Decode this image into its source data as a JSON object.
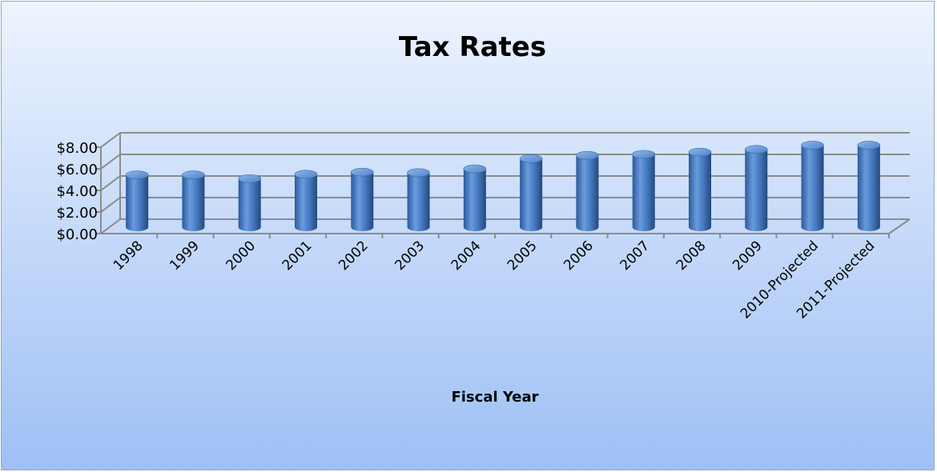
{
  "chart_data": {
    "type": "bar",
    "title": "Tax Rates",
    "xlabel": "Fiscal Year",
    "ylabel": "",
    "categories": [
      "1998",
      "1999",
      "2000",
      "2001",
      "2002",
      "2003",
      "2004",
      "2005",
      "2006",
      "2007",
      "2008",
      "2009",
      "2010-Projected",
      "2011-Projected"
    ],
    "values": [
      4.85,
      4.85,
      4.5,
      4.9,
      5.1,
      5.05,
      5.4,
      6.35,
      6.65,
      6.75,
      6.95,
      7.2,
      7.6,
      7.6
    ],
    "ylim": [
      0,
      8
    ],
    "y_ticks": [
      "$0.00",
      "$2.00",
      "$4.00",
      "$6.00",
      "$8.00"
    ],
    "grid": true,
    "bar_shape": "cylinder",
    "bar_color": "#3f73b9"
  }
}
